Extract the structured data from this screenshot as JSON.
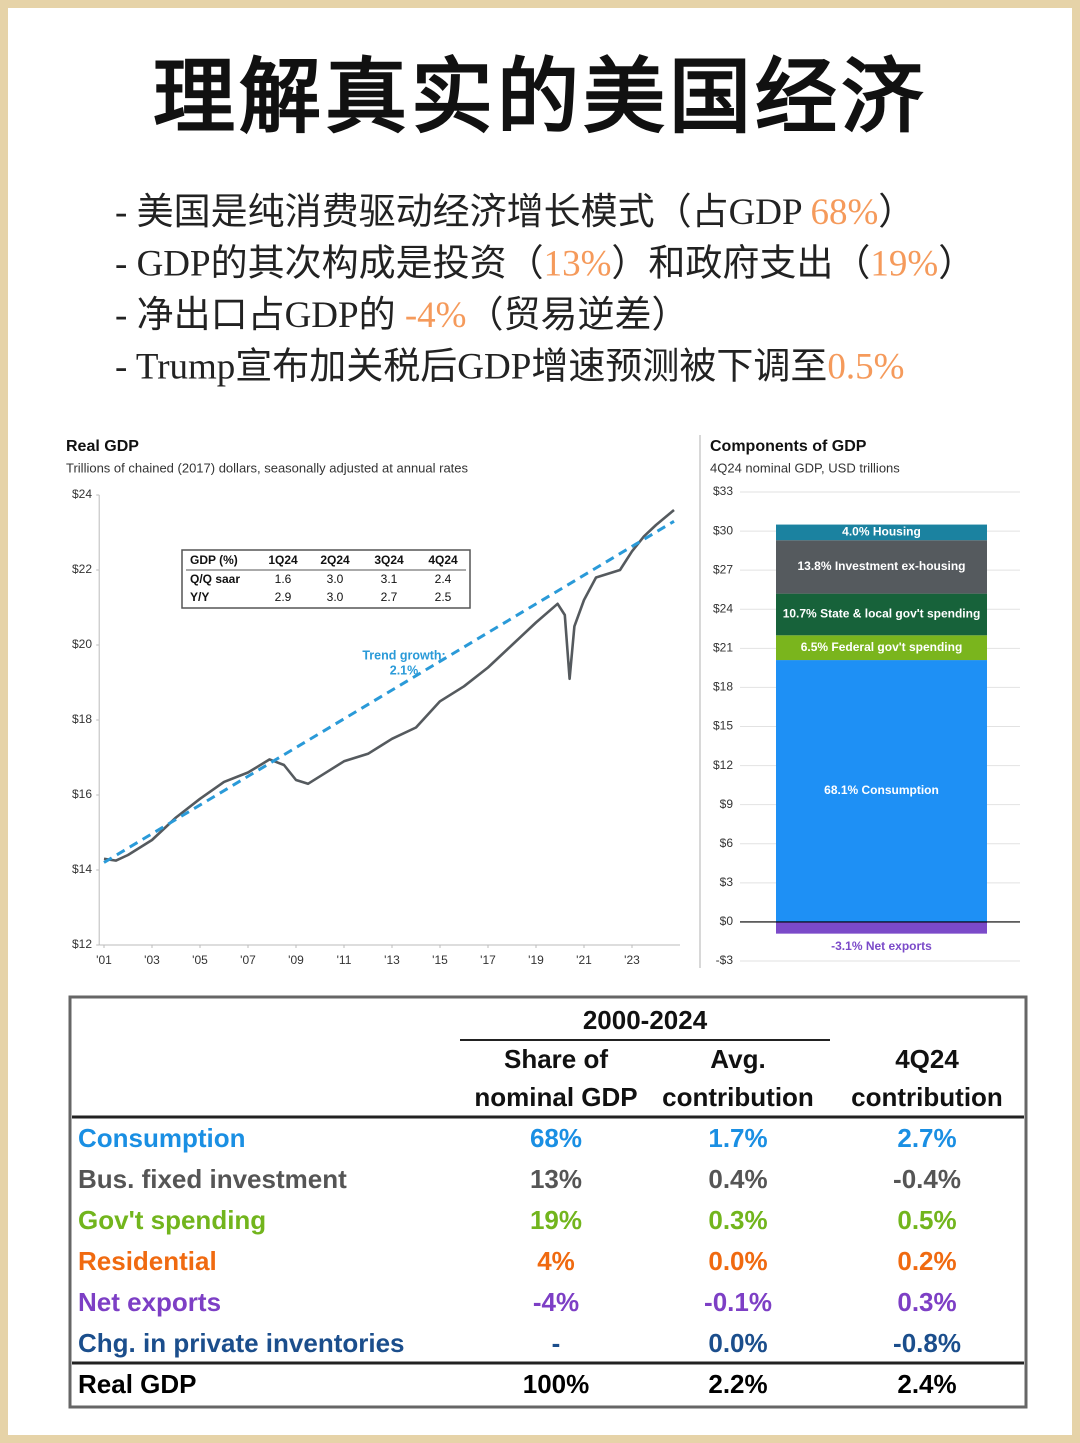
{
  "title": "理解真实的美国经济",
  "bullets": [
    [
      {
        "text": "- 美国是纯消费驱动经济增长模式（占GDP ",
        "accent": false
      },
      {
        "text": "68%",
        "accent": true
      },
      {
        "text": "）",
        "accent": false
      }
    ],
    [
      {
        "text": "- GDP的其次构成是投资（",
        "accent": false
      },
      {
        "text": "13%",
        "accent": true
      },
      {
        "text": "）和政府支出（",
        "accent": false
      },
      {
        "text": "19%",
        "accent": true
      },
      {
        "text": "）",
        "accent": false
      }
    ],
    [
      {
        "text": "- 净出口占GDP的 ",
        "accent": false
      },
      {
        "text": "-4%",
        "accent": true
      },
      {
        "text": "（贸易逆差）",
        "accent": false
      }
    ],
    [
      {
        "text": "- Trump宣布加关税后GDP增速预测被下调至",
        "accent": false
      },
      {
        "text": "0.5%",
        "accent": true
      }
    ]
  ],
  "accent_color": "#f59a5b",
  "chart_data": [
    {
      "type": "line",
      "title": "Real GDP",
      "subtitle": "Trillions of chained (2017) dollars, seasonally adjusted at annual rates",
      "xlim": [
        2000.8,
        2025
      ],
      "xticks": [
        {
          "value": 2001,
          "label": "'01"
        },
        {
          "value": 2003,
          "label": "'03"
        },
        {
          "value": 2005,
          "label": "'05"
        },
        {
          "value": 2007,
          "label": "'07"
        },
        {
          "value": 2009,
          "label": "'09"
        },
        {
          "value": 2011,
          "label": "'11"
        },
        {
          "value": 2013,
          "label": "'13"
        },
        {
          "value": 2015,
          "label": "'15"
        },
        {
          "value": 2017,
          "label": "'17"
        },
        {
          "value": 2019,
          "label": "'19"
        },
        {
          "value": 2021,
          "label": "'21"
        },
        {
          "value": 2023,
          "label": "'23"
        }
      ],
      "ylim": [
        12,
        24
      ],
      "yticks": [
        {
          "value": 12,
          "label": "$12"
        },
        {
          "value": 14,
          "label": "$14"
        },
        {
          "value": 16,
          "label": "$16"
        },
        {
          "value": 18,
          "label": "$18"
        },
        {
          "value": 20,
          "label": "$20"
        },
        {
          "value": 22,
          "label": "$22"
        },
        {
          "value": 24,
          "label": "$24"
        }
      ],
      "series": [
        {
          "color": "#555a5e",
          "dashed": false,
          "x": [
            2001,
            2001.5,
            2002,
            2003,
            2004,
            2005,
            2006,
            2007,
            2007.9,
            2008.5,
            2009,
            2009.5,
            2010,
            2011,
            2012,
            2013,
            2014,
            2015,
            2016,
            2017,
            2018,
            2019,
            2019.9,
            2020.2,
            2020.4,
            2020.6,
            2021,
            2021.5,
            2022,
            2022.5,
            2023,
            2023.5,
            2024,
            2024.75
          ],
          "values": [
            14.3,
            14.25,
            14.4,
            14.8,
            15.4,
            15.9,
            16.35,
            16.6,
            16.95,
            16.8,
            16.4,
            16.3,
            16.5,
            16.9,
            17.1,
            17.5,
            17.8,
            18.5,
            18.9,
            19.4,
            20.0,
            20.6,
            21.1,
            20.8,
            19.1,
            20.5,
            21.2,
            21.8,
            21.9,
            22.0,
            22.5,
            22.9,
            23.2,
            23.6
          ]
        },
        {
          "color": "#2a9ad8",
          "dashed": true,
          "x": [
            2001,
            2024.75
          ],
          "values": [
            14.2,
            23.3
          ]
        }
      ],
      "annotation": [
        "Trend growth:",
        "2.1%"
      ],
      "annotation_color": "#2a9ad8",
      "inset_table": {
        "header": [
          "GDP (%)",
          "1Q24",
          "2Q24",
          "3Q24",
          "4Q24"
        ],
        "rows": [
          [
            "Q/Q saar",
            "1.6",
            "3.0",
            "3.1",
            "2.4"
          ],
          [
            "Y/Y",
            "2.9",
            "3.0",
            "2.7",
            "2.5"
          ]
        ]
      }
    },
    {
      "type": "stacked_bar",
      "title": "Components of GDP",
      "subtitle": "4Q24 nominal GDP, USD trillions",
      "ylim": [
        -3,
        33
      ],
      "yticks": [
        {
          "value": -3,
          "label": "-$3"
        },
        {
          "value": 0,
          "label": "$0"
        },
        {
          "value": 3,
          "label": "$3"
        },
        {
          "value": 6,
          "label": "$6"
        },
        {
          "value": 9,
          "label": "$9"
        },
        {
          "value": 12,
          "label": "$12"
        },
        {
          "value": 15,
          "label": "$15"
        },
        {
          "value": 18,
          "label": "$18"
        },
        {
          "value": 21,
          "label": "$21"
        },
        {
          "value": 24,
          "label": "$24"
        },
        {
          "value": 27,
          "label": "$27"
        },
        {
          "value": 30,
          "label": "$30"
        },
        {
          "value": 33,
          "label": "$33"
        }
      ],
      "grid": true,
      "series": [
        {
          "name": "68.1% Consumption",
          "color": "#1e90f5",
          "values": [
            20.1
          ]
        },
        {
          "name": "6.5% Federal gov't spending",
          "color": "#7ab51d",
          "values": [
            1.9
          ]
        },
        {
          "name": "10.7% State & local gov't spending",
          "color": "#17623a",
          "values": [
            3.2
          ]
        },
        {
          "name": "13.8% Investment ex-housing",
          "color": "#555a5e",
          "values": [
            4.1
          ]
        },
        {
          "name": "4.0% Housing",
          "color": "#1b82a0",
          "values": [
            1.2
          ]
        },
        {
          "name": "-3.1% Net exports",
          "color": "#7b4ac9",
          "values": [
            -0.9
          ]
        }
      ]
    }
  ],
  "table": {
    "group_header": "2000-2024",
    "columns": [
      [
        "Share of",
        "nominal GDP"
      ],
      [
        "Avg.",
        "contribution"
      ],
      [
        "4Q24",
        "contribution"
      ]
    ],
    "rows": [
      {
        "label": "Consumption",
        "color": "#1a8fe3",
        "cells": [
          "68%",
          "1.7%",
          "2.7%"
        ]
      },
      {
        "label": "Bus. fixed investment",
        "color": "#555555",
        "cells": [
          "13%",
          "0.4%",
          "-0.4%"
        ]
      },
      {
        "label": "Gov't spending",
        "color": "#72b51d",
        "cells": [
          "19%",
          "0.3%",
          "0.5%"
        ]
      },
      {
        "label": "Residential",
        "color": "#f06a10",
        "cells": [
          "4%",
          "0.0%",
          "0.2%"
        ]
      },
      {
        "label": "Net exports",
        "color": "#7d3fc5",
        "cells": [
          "-4%",
          "-0.1%",
          "0.3%"
        ]
      },
      {
        "label": "Chg. in private inventories",
        "color": "#1b4e8c",
        "cells": [
          "-",
          "0.0%",
          "-0.8%"
        ]
      }
    ],
    "total": {
      "label": "Real GDP",
      "color": "#000000",
      "cells": [
        "100%",
        "2.2%",
        "2.4%"
      ]
    }
  }
}
